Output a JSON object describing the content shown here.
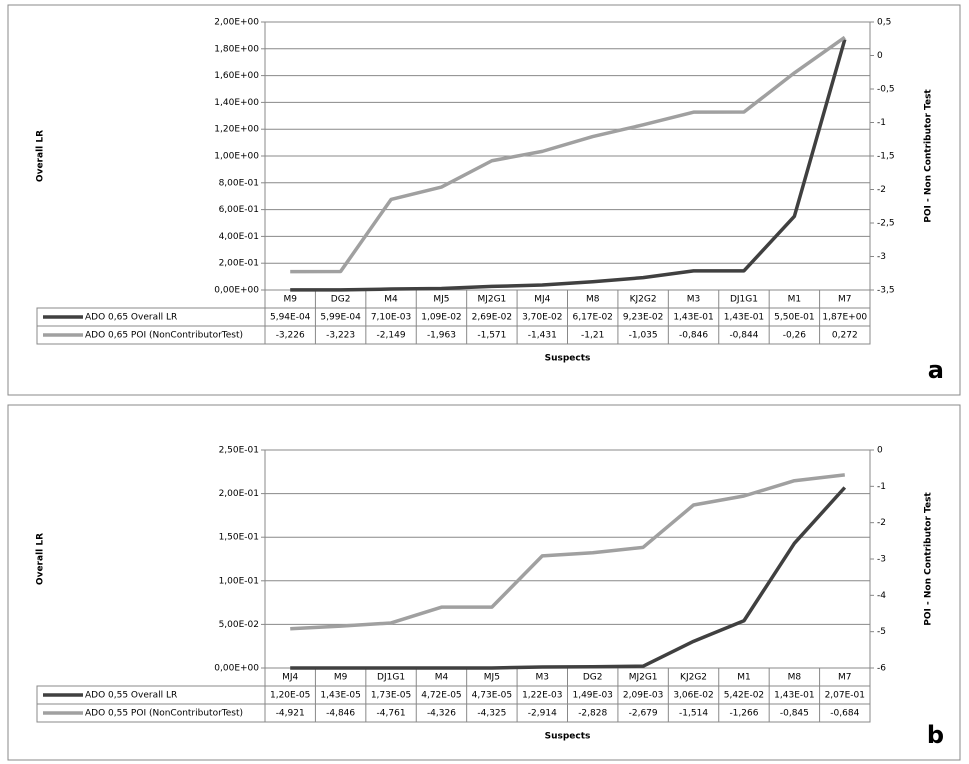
{
  "chart_data": [
    {
      "type": "line",
      "categories": [
        "M9",
        "DG2",
        "M4",
        "MJ5",
        "MJ2G1",
        "MJ4",
        "M8",
        "KJ2G2",
        "M3",
        "DJ1G1",
        "M1",
        "M7"
      ],
      "series": [
        {
          "name": "ADO 0,65 Overall LR",
          "color": "#404040",
          "values": [
            0.000594,
            0.000599,
            0.0071,
            0.0109,
            0.0269,
            0.037,
            0.0617,
            0.0923,
            0.143,
            0.143,
            0.55,
            1.87
          ],
          "value_labels": [
            "5,94E-04",
            "5,99E-04",
            "7,10E-03",
            "1,09E-02",
            "2,69E-02",
            "3,70E-02",
            "6,17E-02",
            "9,23E-02",
            "1,43E-01",
            "1,43E-01",
            "5,50E-01",
            "1,87E+00"
          ]
        },
        {
          "name": "ADO 0,65 POI (NonContributorTest)",
          "color": "#a0a0a0",
          "axis": "y2",
          "values": [
            -3.226,
            -3.223,
            -2.149,
            -1.963,
            -1.571,
            -1.431,
            -1.21,
            -1.035,
            -0.846,
            -0.844,
            -0.26,
            0.272
          ],
          "value_labels": [
            "-3,226",
            "-3,223",
            "-2,149",
            "-1,963",
            "-1,571",
            "-1,431",
            "-1,21",
            "-1,035",
            "-0,846",
            "-0,844",
            "-0,26",
            "0,272"
          ]
        }
      ],
      "y_label": "Overall LR",
      "y2_label": "POI - Non Contributor Test",
      "x_label": "Suspects",
      "panel_label": "a",
      "ylim": [
        0,
        2
      ],
      "yticks": [
        {
          "value": 0,
          "label": "0,00E+00"
        },
        {
          "value": 0.2,
          "label": "2,00E-01"
        },
        {
          "value": 0.4,
          "label": "4,00E-01"
        },
        {
          "value": 0.6,
          "label": "6,00E-01"
        },
        {
          "value": 0.8,
          "label": "8,00E-01"
        },
        {
          "value": 1,
          "label": "1,00E+00"
        },
        {
          "value": 1.2,
          "label": "1,20E+00"
        },
        {
          "value": 1.4,
          "label": "1,40E+00"
        },
        {
          "value": 1.6,
          "label": "1,60E+00"
        },
        {
          "value": 1.8,
          "label": "1,80E+00"
        },
        {
          "value": 2,
          "label": "2,00E+00"
        }
      ],
      "y2lim": [
        -3.5,
        0.5
      ],
      "y2ticks": [
        {
          "value": -3.5,
          "label": "-3,5"
        },
        -3,
        {
          "value": -2.5,
          "label": "-2,5"
        },
        -2,
        {
          "value": -1.5,
          "label": "-1,5"
        },
        -1,
        {
          "value": -0.5,
          "label": "-0,5"
        },
        0,
        {
          "value": 0.5,
          "label": "0,5"
        }
      ],
      "grid": true
    },
    {
      "type": "line",
      "categories": [
        "MJ4",
        "M9",
        "DJ1G1",
        "M4",
        "MJ5",
        "M3",
        "DG2",
        "MJ2G1",
        "KJ2G2",
        "M1",
        "M8",
        "M7"
      ],
      "series": [
        {
          "name": "ADO 0,55 Overall LR",
          "color": "#404040",
          "values": [
            1.2e-05,
            1.43e-05,
            1.73e-05,
            4.72e-05,
            4.73e-05,
            0.00122,
            0.00149,
            0.00209,
            0.0306,
            0.0542,
            0.143,
            0.207
          ],
          "value_labels": [
            "1,20E-05",
            "1,43E-05",
            "1,73E-05",
            "4,72E-05",
            "4,73E-05",
            "1,22E-03",
            "1,49E-03",
            "2,09E-03",
            "3,06E-02",
            "5,42E-02",
            "1,43E-01",
            "2,07E-01"
          ]
        },
        {
          "name": "ADO 0,55 POI (NonContributorTest)",
          "color": "#a0a0a0",
          "axis": "y2",
          "values": [
            -4.921,
            -4.846,
            -4.761,
            -4.326,
            -4.325,
            -2.914,
            -2.828,
            -2.679,
            -1.514,
            -1.266,
            -0.845,
            -0.684
          ],
          "value_labels": [
            "-4,921",
            "-4,846",
            "-4,761",
            "-4,326",
            "-4,325",
            "-2,914",
            "-2,828",
            "-2,679",
            "-1,514",
            "-1,266",
            "-0,845",
            "-0,684"
          ]
        }
      ],
      "y_label": "Overall LR",
      "y2_label": "POI - Non Contributor Test",
      "x_label": "Suspects",
      "panel_label": "b",
      "ylim": [
        0,
        0.25
      ],
      "yticks": [
        {
          "value": 0,
          "label": "0,00E+00"
        },
        {
          "value": 0.05,
          "label": "5,00E-02"
        },
        {
          "value": 0.1,
          "label": "1,00E-01"
        },
        {
          "value": 0.15,
          "label": "1,50E-01"
        },
        {
          "value": 0.2,
          "label": "2,00E-01"
        },
        {
          "value": 0.25,
          "label": "2,50E-01"
        }
      ],
      "y2lim": [
        -6,
        0
      ],
      "y2ticks": [
        -6,
        -5,
        -4,
        -3,
        -2,
        -1,
        0
      ],
      "grid": true
    }
  ]
}
